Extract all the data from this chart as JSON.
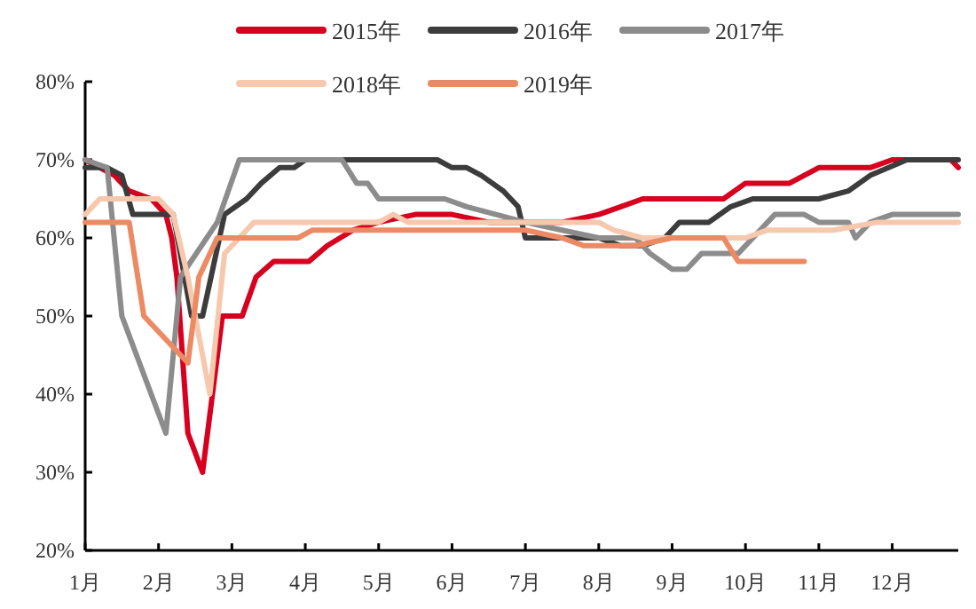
{
  "chart_data": {
    "type": "line",
    "xlim": [
      1,
      12.9
    ],
    "ylim": [
      20,
      80
    ],
    "xticks": [
      {
        "value": 1,
        "label": "1月"
      },
      {
        "value": 2,
        "label": "2月"
      },
      {
        "value": 3,
        "label": "3月"
      },
      {
        "value": 4,
        "label": "4月"
      },
      {
        "value": 5,
        "label": "5月"
      },
      {
        "value": 6,
        "label": "6月"
      },
      {
        "value": 7,
        "label": "7月"
      },
      {
        "value": 8,
        "label": "8月"
      },
      {
        "value": 9,
        "label": "9月"
      },
      {
        "value": 10,
        "label": "10月"
      },
      {
        "value": 11,
        "label": "11月"
      },
      {
        "value": 12,
        "label": "12月"
      }
    ],
    "yticks": [
      {
        "value": 20,
        "label": "20%"
      },
      {
        "value": 30,
        "label": "30%"
      },
      {
        "value": 40,
        "label": "40%"
      },
      {
        "value": 50,
        "label": "50%"
      },
      {
        "value": 60,
        "label": "60%"
      },
      {
        "value": 70,
        "label": "70%"
      },
      {
        "value": 80,
        "label": "80%"
      }
    ],
    "grid": false,
    "legend": "top",
    "series": [
      {
        "name": "2015年",
        "color": "#d7001e",
        "x": [
          1.0,
          1.2,
          1.4,
          1.6,
          1.9,
          2.1,
          2.18,
          2.25,
          2.4,
          2.6,
          2.87,
          3.14,
          3.33,
          3.57,
          4.05,
          4.3,
          4.65,
          5.0,
          5.5,
          6.0,
          6.5,
          7.0,
          7.5,
          8.0,
          8.3,
          8.6,
          9.0,
          9.7,
          10.0,
          10.6,
          11.0,
          11.7,
          12.0,
          12.8,
          12.9
        ],
        "values": [
          70,
          69,
          68,
          66,
          65,
          63,
          60,
          55,
          35,
          30,
          50,
          50,
          55,
          57,
          57,
          59,
          61,
          62,
          63,
          63,
          62,
          62,
          62,
          63,
          64,
          65,
          65,
          65,
          67,
          67,
          69,
          69,
          70,
          70,
          69
        ]
      },
      {
        "name": "2016年",
        "color": "#3c3c3c",
        "x": [
          1.0,
          1.3,
          1.5,
          1.65,
          2.0,
          2.2,
          2.45,
          2.6,
          2.9,
          3.2,
          3.4,
          3.65,
          3.85,
          4.0,
          5.8,
          6.0,
          6.2,
          6.4,
          6.7,
          6.9,
          7.0,
          8.0,
          8.3,
          8.6,
          8.9,
          9.1,
          9.5,
          9.8,
          10.1,
          11.0,
          11.4,
          11.7,
          12.2,
          12.9
        ],
        "values": [
          69,
          69,
          68,
          63,
          63,
          63,
          50,
          50,
          63,
          65,
          67,
          69,
          69,
          70,
          70,
          69,
          69,
          68,
          66,
          64,
          60,
          60,
          59,
          59,
          60,
          62,
          62,
          64,
          65,
          65,
          66,
          68,
          70,
          70
        ]
      },
      {
        "name": "2017年",
        "color": "#8c8c8c",
        "x": [
          1.0,
          1.3,
          1.5,
          2.1,
          2.3,
          2.8,
          3.1,
          4.0,
          4.5,
          4.7,
          4.85,
          5.0,
          5.9,
          6.2,
          6.6,
          7.0,
          7.5,
          8.0,
          8.5,
          8.7,
          9.0,
          9.2,
          9.4,
          9.9,
          10.2,
          10.4,
          10.8,
          11.0,
          11.4,
          11.5,
          11.7,
          12.0,
          12.9
        ],
        "values": [
          70,
          69,
          50,
          35,
          55,
          62,
          70,
          70,
          70,
          67,
          67,
          65,
          65,
          64,
          63,
          62,
          61,
          60,
          60,
          58,
          56,
          56,
          58,
          58,
          61,
          63,
          63,
          62,
          62,
          60,
          62,
          63,
          63
        ]
      },
      {
        "name": "2018年",
        "color": "#f6c8ae",
        "x": [
          1.0,
          1.2,
          2.0,
          2.2,
          2.4,
          2.7,
          2.9,
          3.1,
          3.3,
          4.5,
          5.0,
          5.2,
          5.4,
          7.0,
          8.0,
          8.2,
          8.6,
          10.0,
          10.3,
          10.7,
          11.2,
          11.8,
          12.9
        ],
        "values": [
          63,
          65,
          65,
          63,
          55,
          40,
          58,
          60,
          62,
          62,
          62,
          63,
          62,
          62,
          62,
          61,
          60,
          60,
          61,
          61,
          61,
          62,
          62
        ]
      },
      {
        "name": "2019年",
        "color": "#ec8a64",
        "x": [
          1.0,
          1.6,
          1.8,
          2.4,
          2.55,
          2.8,
          3.5,
          3.9,
          4.1,
          7.0,
          7.5,
          7.8,
          8.5,
          9.0,
          9.7,
          9.9,
          10.8
        ],
        "values": [
          62,
          62,
          50,
          44,
          55,
          60,
          60,
          60,
          61,
          61,
          60,
          59,
          59,
          60,
          60,
          57,
          57
        ]
      }
    ]
  }
}
